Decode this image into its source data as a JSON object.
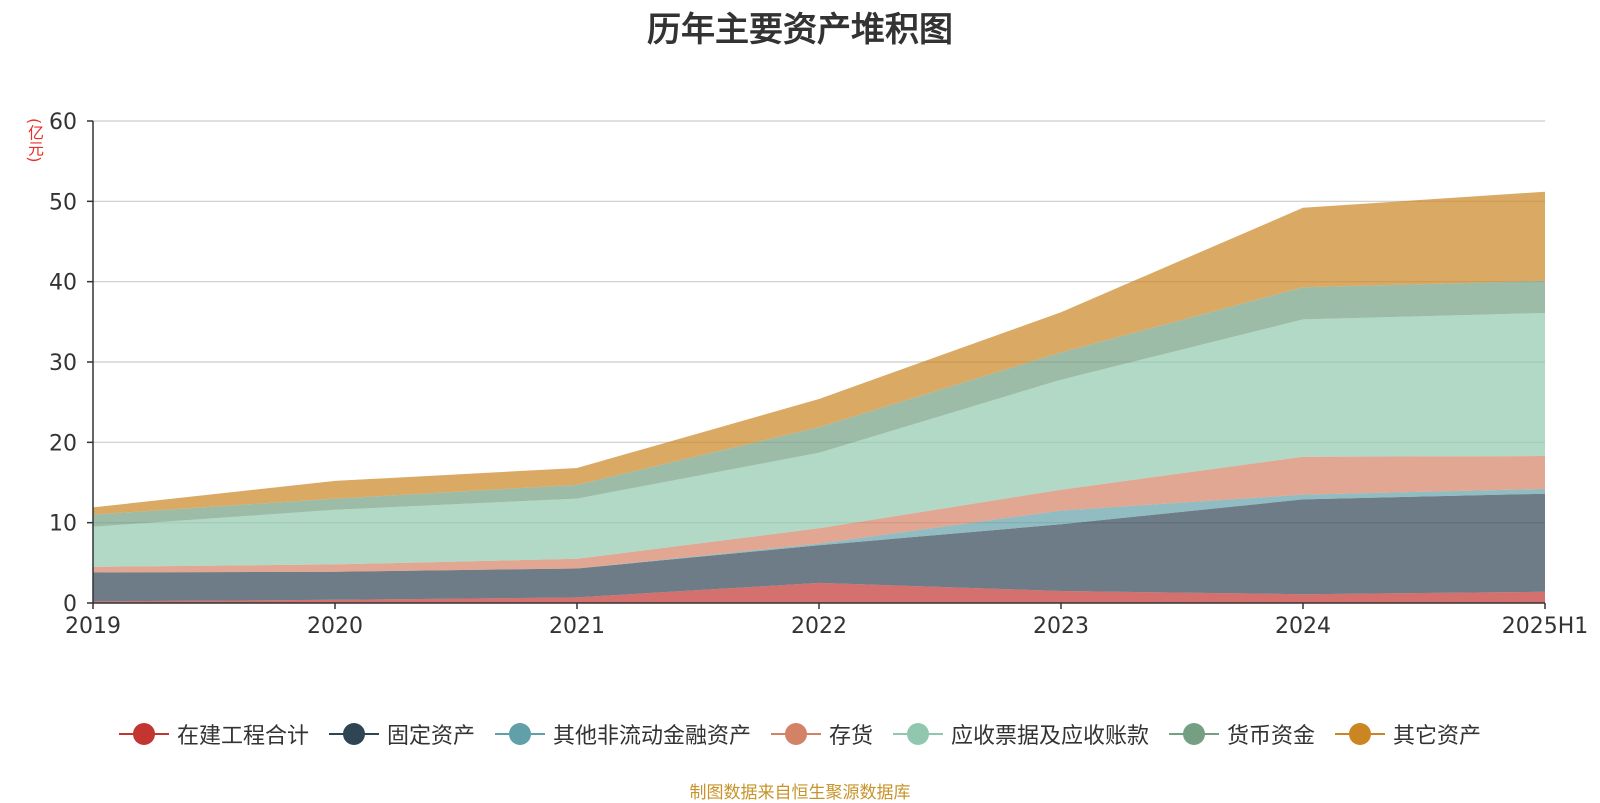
{
  "chart_data": {
    "type": "area",
    "stacked": true,
    "title": "历年主要资产堆积图",
    "unit_label": "(亿元)",
    "x": [
      "2019",
      "2020",
      "2021",
      "2022",
      "2023",
      "2024",
      "2025H1"
    ],
    "ylim": [
      0,
      60
    ],
    "yticks": [
      0,
      10,
      20,
      30,
      40,
      50,
      60
    ],
    "grid": true,
    "legend_position": "bottom",
    "series": [
      {
        "name": "在建工程合计",
        "color": "#c23531",
        "values": [
          0.2,
          0.4,
          0.7,
          2.5,
          1.5,
          1.1,
          1.4
        ]
      },
      {
        "name": "固定资产",
        "color": "#2f4554",
        "values": [
          3.6,
          3.5,
          3.6,
          4.7,
          8.3,
          11.8,
          12.2
        ]
      },
      {
        "name": "其他非流动金融资产",
        "color": "#61a0a8",
        "values": [
          0.0,
          0.0,
          0.0,
          0.2,
          1.7,
          0.6,
          0.6
        ]
      },
      {
        "name": "存货",
        "color": "#d48265",
        "values": [
          0.7,
          0.9,
          1.2,
          1.9,
          2.6,
          4.7,
          4.1
        ]
      },
      {
        "name": "应收票据及应收账款",
        "color": "#91c7ae",
        "values": [
          5.0,
          6.8,
          7.5,
          9.4,
          13.7,
          17.1,
          17.8
        ]
      },
      {
        "name": "货币资金",
        "color": "#749f83",
        "values": [
          1.5,
          1.4,
          1.7,
          3.2,
          3.4,
          4.0,
          4.0
        ]
      },
      {
        "name": "其它资产",
        "color": "#ca8622",
        "values": [
          0.9,
          2.2,
          2.1,
          3.5,
          5.0,
          9.9,
          11.1
        ]
      }
    ],
    "source_note": "制图数据来自恒生聚源数据库"
  }
}
